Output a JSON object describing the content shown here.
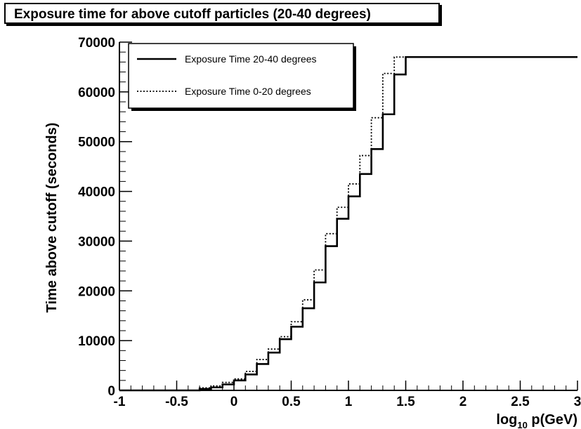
{
  "chart_data": {
    "type": "line",
    "title": "Exposure time for above cutoff particles (20-40 degrees)",
    "ylabel": "Time above cutoff (seconds)",
    "xlabel_main": "log",
    "xlabel_sub": "10",
    "xlabel_rest": " p(GeV)",
    "xlim": [
      -1,
      3
    ],
    "ylim": [
      0,
      70000
    ],
    "xticks": [
      -1,
      -0.5,
      0,
      0.5,
      1,
      1.5,
      2,
      2.5,
      3
    ],
    "xtick_labels": [
      "-1",
      "-0.5",
      "0",
      "0.5",
      "1",
      "1.5",
      "2",
      "2.5",
      "3"
    ],
    "yticks": [
      0,
      10000,
      20000,
      30000,
      40000,
      50000,
      60000,
      70000
    ],
    "ytick_labels": [
      "0",
      "10000",
      "20000",
      "30000",
      "40000",
      "50000",
      "60000",
      "70000"
    ],
    "grid": false,
    "legend_position": "top-left",
    "bin_edges": [
      -1.0,
      -0.9,
      -0.8,
      -0.7,
      -0.6,
      -0.5,
      -0.4,
      -0.3,
      -0.2,
      -0.1,
      0.0,
      0.1,
      0.2,
      0.3,
      0.4,
      0.5,
      0.6,
      0.7,
      0.8,
      0.9,
      1.0,
      1.1,
      1.2,
      1.3,
      1.4,
      1.5,
      1.6,
      1.7,
      1.8,
      1.9,
      2.0,
      2.1,
      2.2,
      2.3,
      2.4,
      2.5,
      2.6,
      2.7,
      2.8,
      2.9,
      3.0
    ],
    "series": [
      {
        "name": "Exposure Time 20-40 degrees",
        "style": "solid",
        "values": [
          0,
          0,
          0,
          0,
          0,
          0,
          0,
          300,
          600,
          1200,
          2000,
          3200,
          5300,
          7600,
          10300,
          12800,
          16500,
          21700,
          29000,
          34500,
          39000,
          43500,
          48500,
          55500,
          63500,
          67000,
          67000,
          67000,
          67000,
          67000,
          67000,
          67000,
          67000,
          67000,
          67000,
          67000,
          67000,
          67000,
          67000,
          67000
        ]
      },
      {
        "name": "Exposure Time 0-20 degrees",
        "style": "dotted",
        "values": [
          0,
          0,
          0,
          0,
          0,
          0,
          0,
          500,
          900,
          1600,
          2300,
          3800,
          6200,
          8300,
          10800,
          13800,
          18200,
          24200,
          31500,
          36800,
          41500,
          47200,
          54800,
          63700,
          67000,
          67000,
          67000,
          67000,
          67000,
          67000,
          67000,
          67000,
          67000,
          67000,
          67000,
          67000,
          67000,
          67000,
          67000,
          67000
        ]
      }
    ]
  },
  "colors": {
    "axis": "#000000",
    "line": "#000000",
    "background": "#ffffff"
  }
}
